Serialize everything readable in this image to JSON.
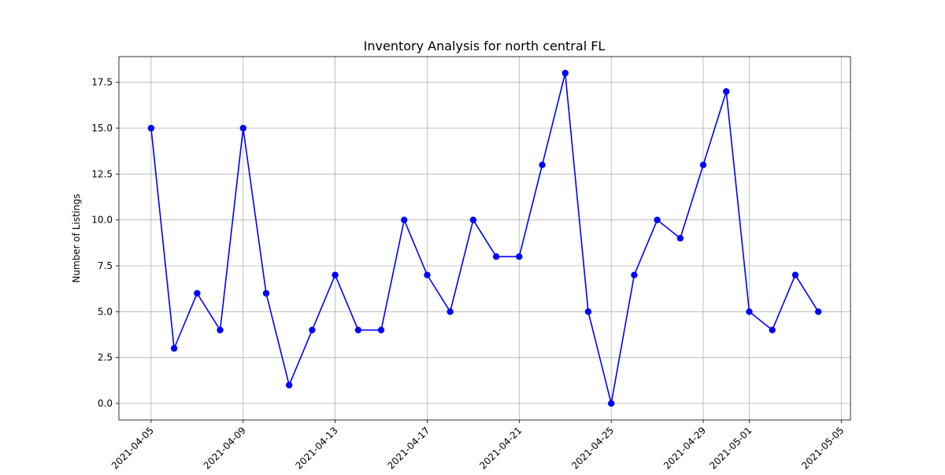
{
  "chart_data": {
    "type": "line",
    "title": "Inventory Analysis for north central FL",
    "xlabel": "",
    "ylabel": "Number of Listings",
    "x": [
      "2021-04-05",
      "2021-04-06",
      "2021-04-07",
      "2021-04-08",
      "2021-04-09",
      "2021-04-10",
      "2021-04-11",
      "2021-04-12",
      "2021-04-13",
      "2021-04-14",
      "2021-04-15",
      "2021-04-16",
      "2021-04-17",
      "2021-04-18",
      "2021-04-19",
      "2021-04-20",
      "2021-04-21",
      "2021-04-22",
      "2021-04-23",
      "2021-04-24",
      "2021-04-25",
      "2021-04-26",
      "2021-04-27",
      "2021-04-28",
      "2021-04-29",
      "2021-04-30",
      "2021-05-01",
      "2021-05-02",
      "2021-05-03",
      "2021-05-04"
    ],
    "series": [
      {
        "values": [
          15,
          3,
          6,
          4,
          15,
          6,
          1,
          4,
          7,
          4,
          4,
          10,
          7,
          5,
          10,
          8,
          8,
          13,
          18,
          5,
          0,
          7,
          10,
          9,
          13,
          17,
          5,
          4,
          7,
          5
        ],
        "color": "#0000ff",
        "marker": "circle"
      }
    ],
    "xlim": [
      "2021-04-03.6",
      "2021-05-05.4"
    ],
    "ylim": [
      -0.9,
      18.9
    ],
    "x_ticks": [
      "2021-04-05",
      "2021-04-09",
      "2021-04-13",
      "2021-04-17",
      "2021-04-21",
      "2021-04-25",
      "2021-04-29",
      "2021-05-01",
      "2021-05-05"
    ],
    "y_ticks": [
      "0.0",
      "2.5",
      "5.0",
      "7.5",
      "10.0",
      "12.5",
      "15.0",
      "17.5"
    ],
    "grid": true
  }
}
